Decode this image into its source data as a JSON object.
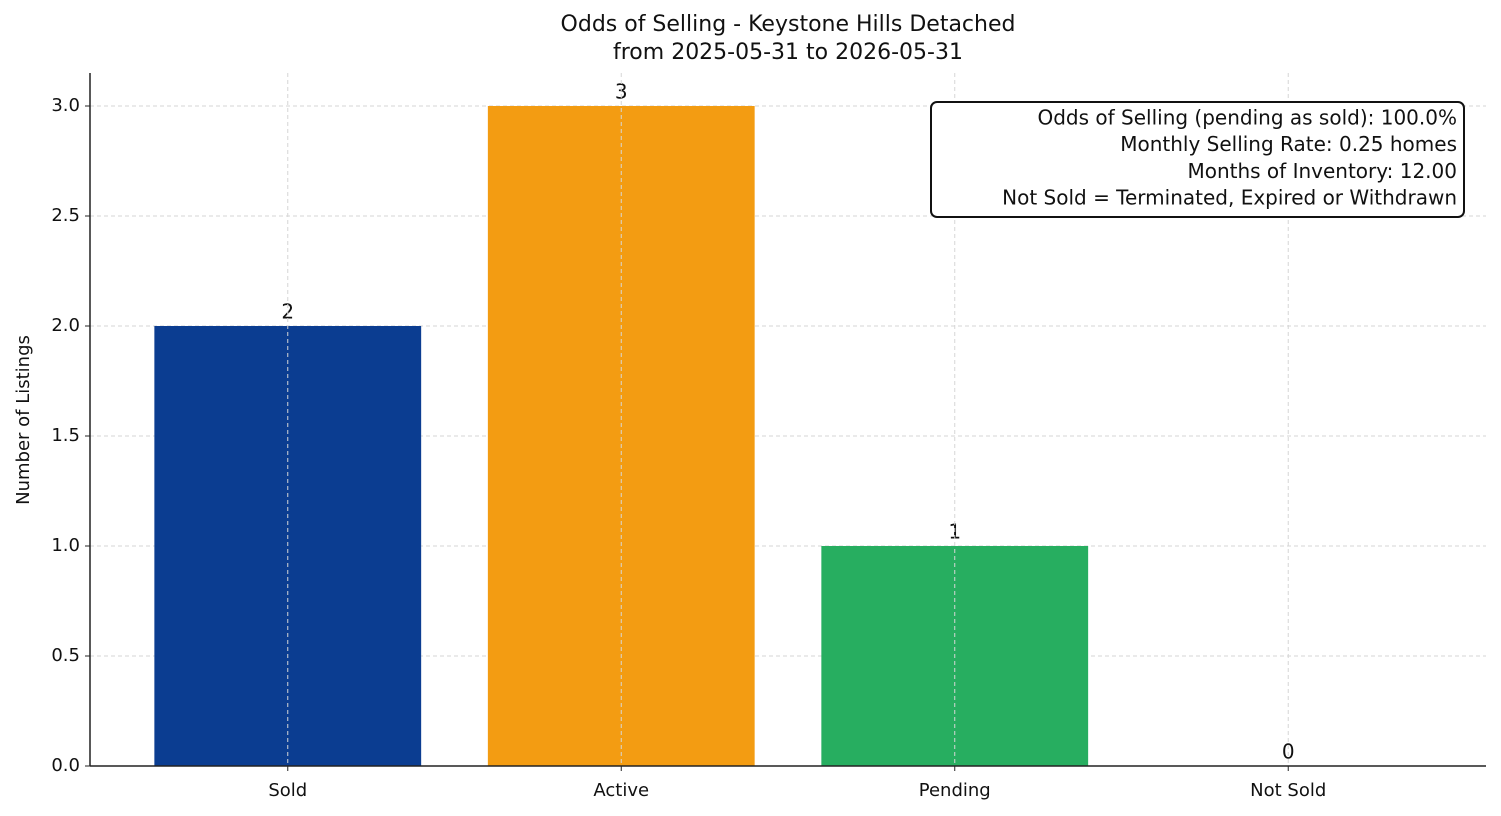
{
  "chart_data": {
    "type": "bar",
    "title": "Odds of Selling - Keystone Hills Detached",
    "subtitle": "from 2025-05-31 to 2026-05-31",
    "y_label": "Number of Listings",
    "categories": [
      "Sold",
      "Active",
      "Pending",
      "Not Sold"
    ],
    "values": [
      2,
      3,
      1,
      0
    ],
    "colors": [
      "#0b3d91",
      "#f39c12",
      "#27ae60",
      "#c0392b"
    ],
    "ylim": [
      0,
      3.15
    ],
    "yticks": [
      {
        "value": 0,
        "label": "0.0"
      },
      {
        "value": 0.5,
        "label": "0.5"
      },
      {
        "value": 1,
        "label": "1.0"
      },
      {
        "value": 1.5,
        "label": "1.5"
      },
      {
        "value": 2,
        "label": "2.0"
      },
      {
        "value": 2.5,
        "label": "2.5"
      },
      {
        "value": 3,
        "label": "3.0"
      }
    ],
    "grid": true,
    "annotation": [
      "Odds of Selling (pending as sold): 100.0%",
      "Monthly Selling Rate: 0.25 homes",
      "Months of Inventory: 12.00",
      "Not Sold = Terminated, Expired or Withdrawn"
    ]
  }
}
